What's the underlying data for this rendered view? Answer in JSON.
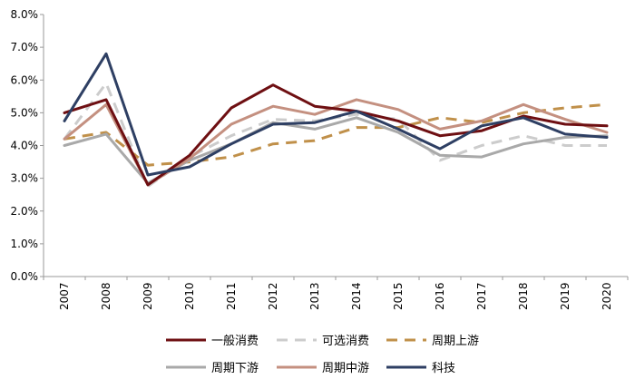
{
  "chart_data": {
    "type": "line",
    "title": "",
    "xlabel": "",
    "ylabel": "",
    "x": [
      "2007",
      "2008",
      "2009",
      "2010",
      "2011",
      "2012",
      "2013",
      "2014",
      "2015",
      "2016",
      "2017",
      "2018",
      "2019",
      "2020"
    ],
    "ylim": [
      0,
      8
    ],
    "yticks": [
      0,
      1,
      2,
      3,
      4,
      5,
      6,
      7,
      8
    ],
    "ytick_labels": [
      "0.0%",
      "1.0%",
      "2.0%",
      "3.0%",
      "4.0%",
      "5.0%",
      "6.0%",
      "7.0%",
      "8.0%"
    ],
    "grid": false,
    "legend_position": "bottom",
    "series": [
      {
        "name": "一般消费",
        "color": "#6e0f12",
        "dash": "solid",
        "values": [
          5.0,
          5.4,
          2.8,
          3.7,
          5.15,
          5.85,
          5.2,
          5.05,
          4.75,
          4.3,
          4.45,
          4.9,
          4.65,
          4.6
        ]
      },
      {
        "name": "可选消费",
        "color": "#cccccc",
        "dash": "dashed",
        "values": [
          4.2,
          5.9,
          2.75,
          3.65,
          4.3,
          4.8,
          4.75,
          4.95,
          4.8,
          3.55,
          4.0,
          4.3,
          4.0,
          4.0
        ]
      },
      {
        "name": "周期上游",
        "color": "#c0904a",
        "dash": "dashed",
        "values": [
          4.2,
          4.4,
          3.4,
          3.5,
          3.65,
          4.05,
          4.15,
          4.55,
          4.55,
          4.85,
          4.7,
          5.0,
          5.15,
          5.25
        ]
      },
      {
        "name": "周期下游",
        "color": "#a9a9a9",
        "dash": "solid",
        "values": [
          4.0,
          4.35,
          2.85,
          3.55,
          4.05,
          4.7,
          4.5,
          4.85,
          4.4,
          3.7,
          3.65,
          4.05,
          4.25,
          4.3
        ]
      },
      {
        "name": "周期中游",
        "color": "#c49080",
        "dash": "solid",
        "values": [
          4.2,
          5.25,
          2.8,
          3.6,
          4.65,
          5.2,
          4.95,
          5.4,
          5.1,
          4.5,
          4.75,
          5.25,
          4.8,
          4.4
        ]
      },
      {
        "name": "科技",
        "color": "#2e3f63",
        "dash": "solid",
        "values": [
          4.75,
          6.8,
          3.1,
          3.35,
          4.05,
          4.65,
          4.7,
          5.05,
          4.5,
          3.9,
          4.6,
          4.85,
          4.35,
          4.25
        ]
      }
    ]
  }
}
